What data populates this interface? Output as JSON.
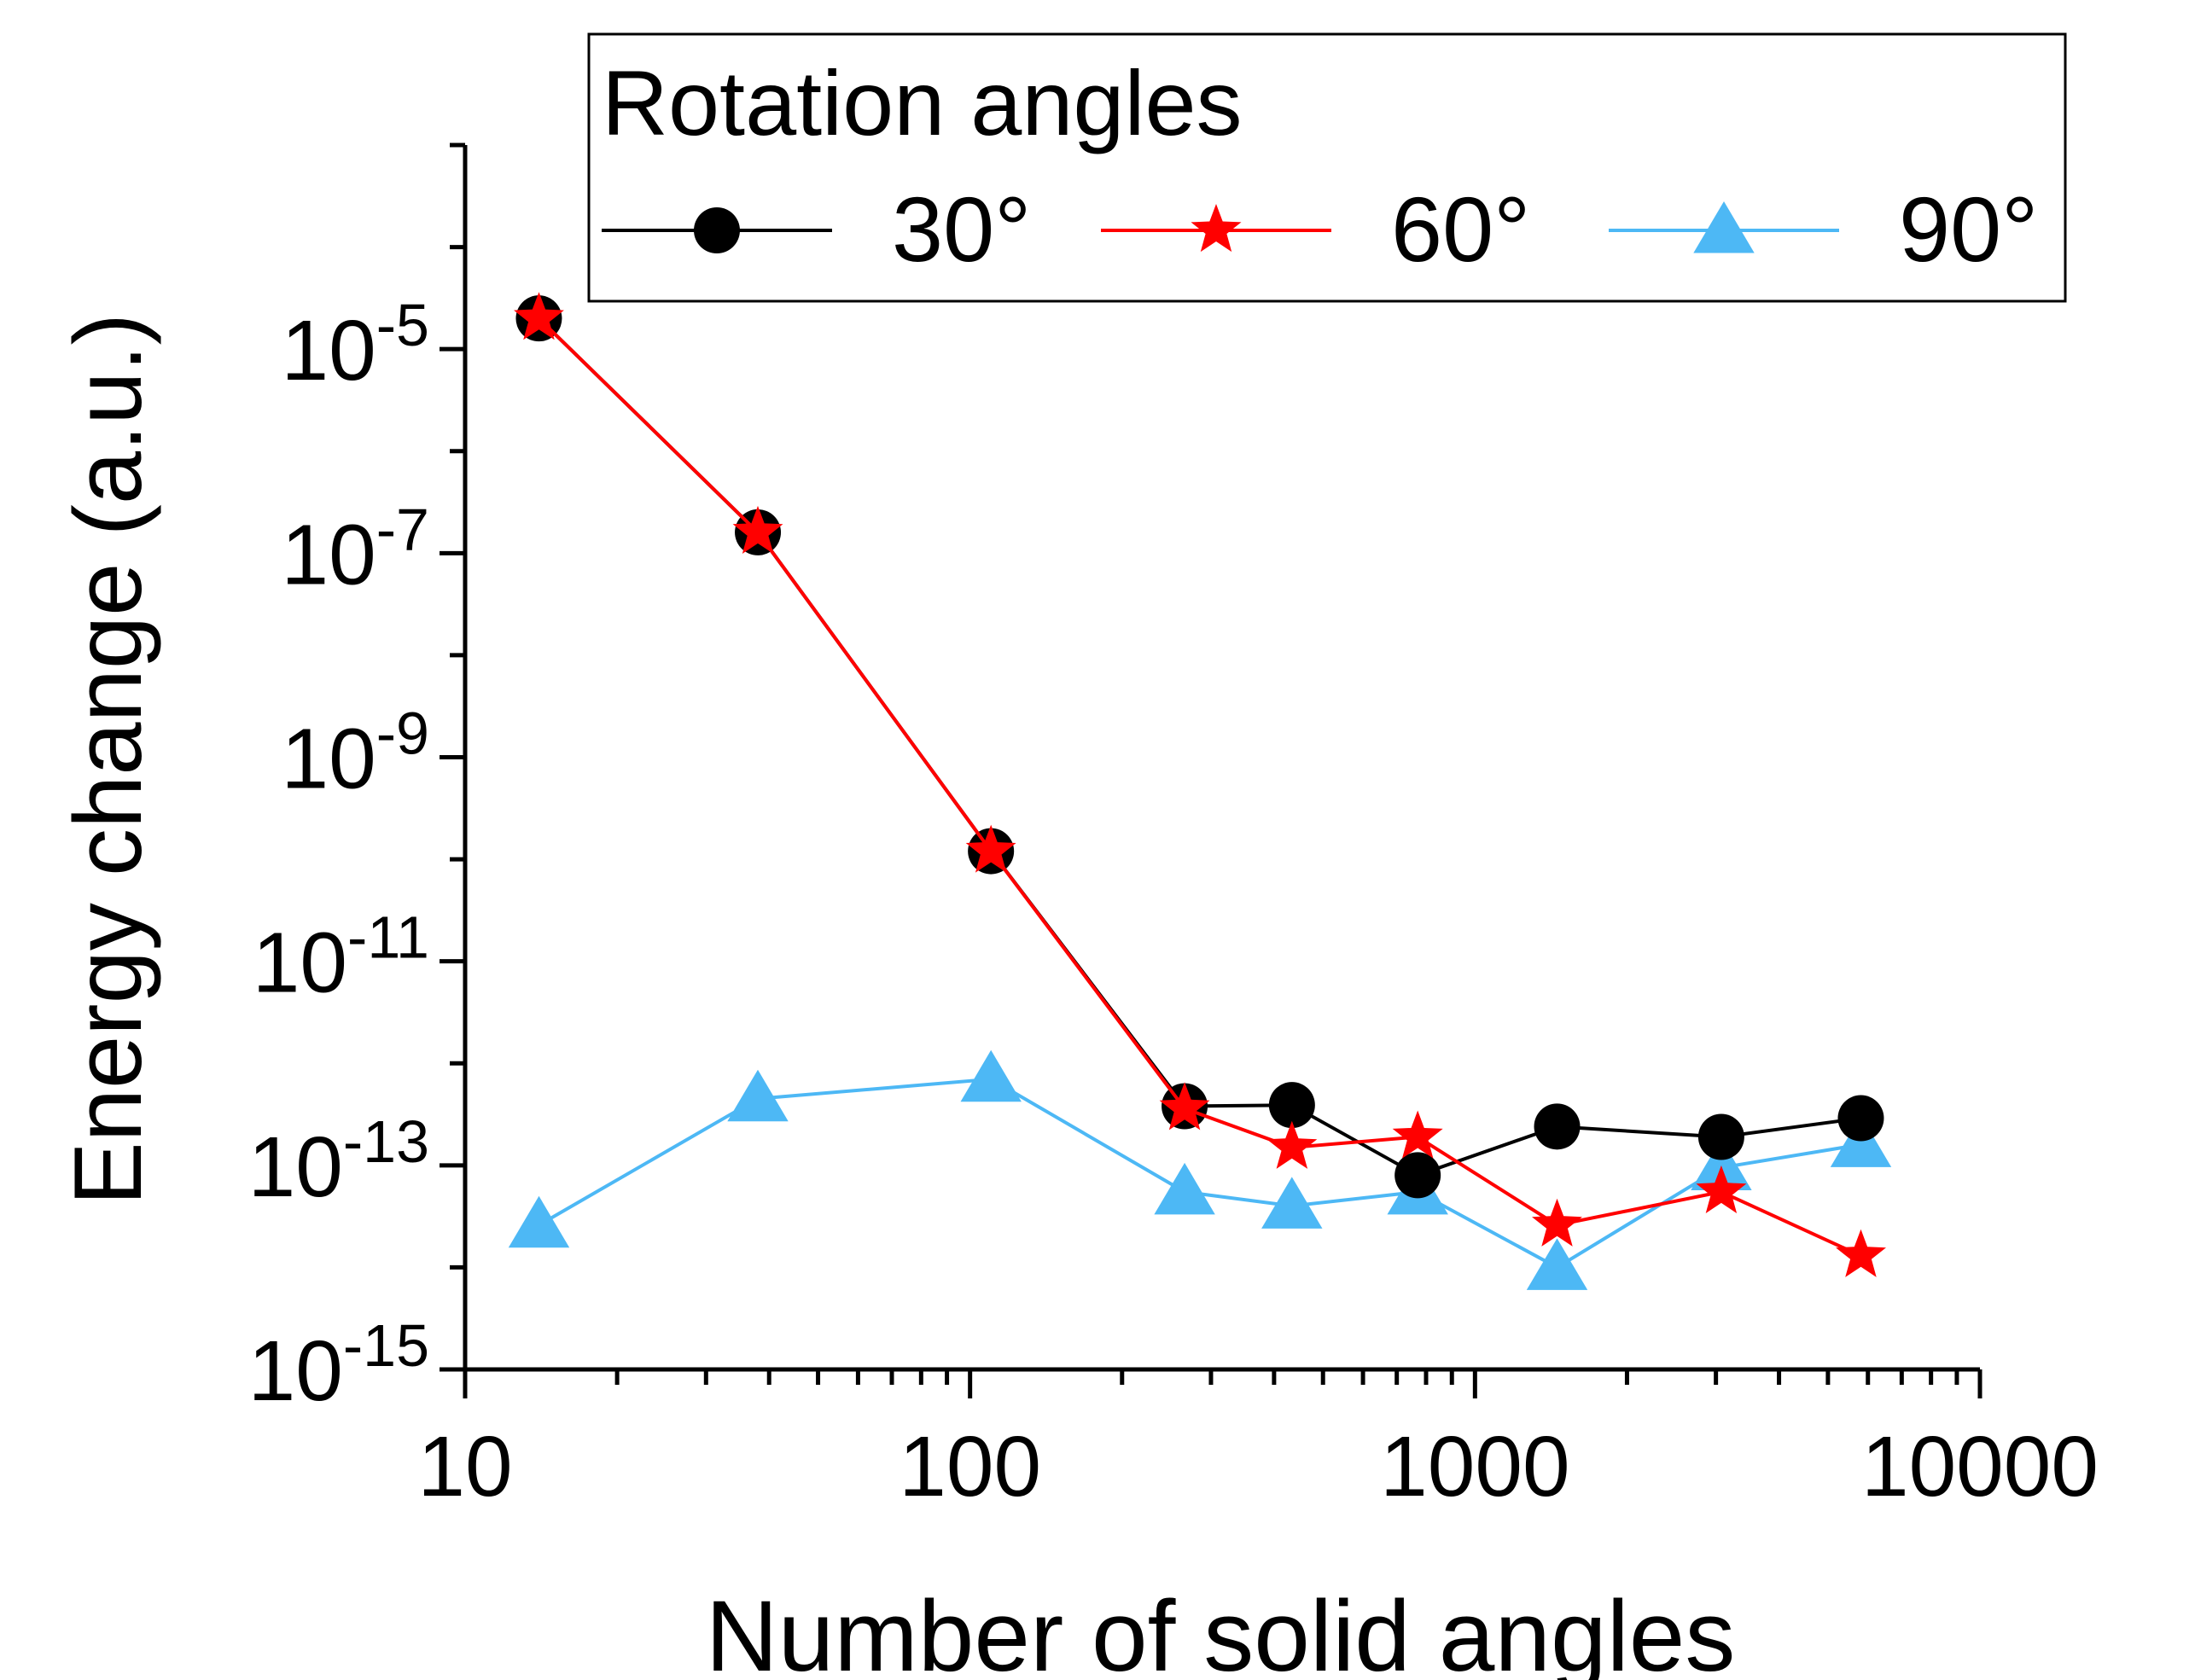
{
  "chart_data": {
    "type": "line",
    "xscale": "log",
    "yscale": "log",
    "xlim": [
      10,
      10000
    ],
    "ylim": [
      1e-15,
      0.001
    ],
    "xlabel": "Number of  solid angles",
    "ylabel": "Energy change (a.u.)",
    "xticks": [
      {
        "value": 10,
        "label": "10"
      },
      {
        "value": 100,
        "label": "100"
      },
      {
        "value": 1000,
        "label": "1000"
      },
      {
        "value": 10000,
        "label": "10000"
      }
    ],
    "yticks": [
      {
        "value": 1e-15,
        "base": "10",
        "exp": "-15"
      },
      {
        "value": 1e-13,
        "base": "10",
        "exp": "-13"
      },
      {
        "value": 1e-11,
        "base": "10",
        "exp": "-11"
      },
      {
        "value": 1e-09,
        "base": "10",
        "exp": "-9"
      },
      {
        "value": 1e-07,
        "base": "10",
        "exp": "-7"
      },
      {
        "value": 1e-05,
        "base": "10",
        "exp": "-5"
      }
    ],
    "legend": {
      "title": "Rotation angles",
      "position": "top-right"
    },
    "x": [
      14,
      38,
      110,
      266,
      434,
      770,
      1454,
      3074,
      5810
    ],
    "series": [
      {
        "name": "30°",
        "color": "#000000",
        "marker": "circle",
        "values": [
          2e-05,
          1.6e-07,
          1.2e-10,
          3.8e-13,
          3.9e-13,
          8e-14,
          2.4e-13,
          1.9e-13,
          2.9e-13
        ]
      },
      {
        "name": "60°",
        "color": "#ff0000",
        "marker": "star",
        "values": [
          2e-05,
          1.6e-07,
          1.2e-10,
          3.6e-13,
          1.5e-13,
          1.9e-13,
          2.6e-14,
          5.5e-14,
          1.3e-14
        ]
      },
      {
        "name": "90°",
        "color": "#4db8f5",
        "marker": "triangle",
        "values": [
          2.6e-14,
          4.5e-13,
          7e-13,
          5.5e-14,
          4e-14,
          5.5e-14,
          1e-14,
          9.5e-14,
          1.6e-13
        ]
      }
    ]
  }
}
